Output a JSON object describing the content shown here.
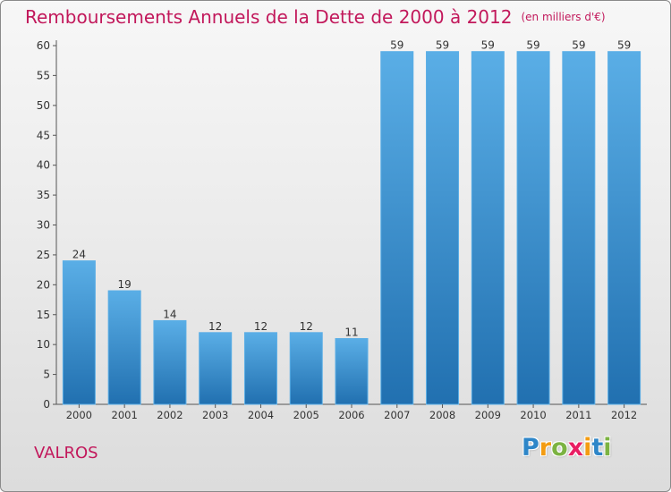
{
  "chart_data": {
    "type": "bar",
    "title": "Remboursements Annuels de la Dette de 2000 à 2012",
    "subtitle": "(en milliers d'€)",
    "xlabel": "",
    "ylabel": "",
    "categories": [
      "2000",
      "2001",
      "2002",
      "2003",
      "2004",
      "2005",
      "2006",
      "2007",
      "2008",
      "2009",
      "2010",
      "2011",
      "2012"
    ],
    "values": [
      24,
      19,
      14,
      12,
      12,
      12,
      11,
      59,
      59,
      59,
      59,
      59,
      59
    ],
    "ylim": [
      0,
      60
    ],
    "yticks": [
      0,
      5,
      10,
      15,
      20,
      25,
      30,
      35,
      40,
      45,
      50,
      55,
      60
    ],
    "grid": false,
    "bar_color": "#3d94d6",
    "bar_color_light": "#5aaee6",
    "bar_color_dark": "#2170b0"
  },
  "footer": {
    "place": "VALROS",
    "logo_letters": [
      "P",
      "r",
      "o",
      "x",
      "i",
      "t",
      "i"
    ],
    "logo_colors": [
      "#2e86c8",
      "#f39c12",
      "#7cb342",
      "#e91e63",
      "#f39c12",
      "#2e86c8",
      "#7cb342"
    ]
  },
  "colors": {
    "title": "#c2185b",
    "axis": "#555555",
    "label": "#333333"
  }
}
